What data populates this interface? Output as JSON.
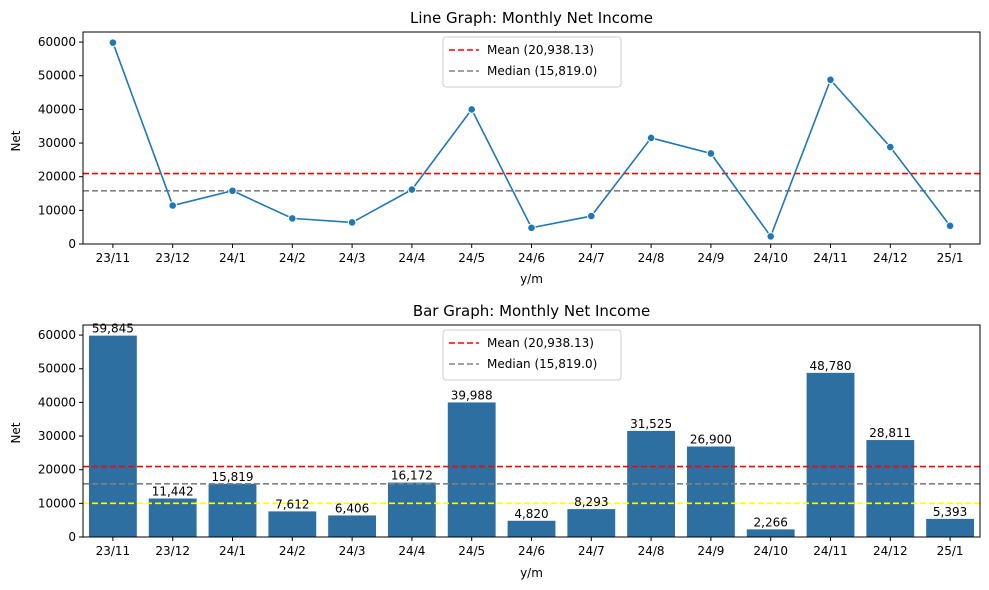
{
  "chart_data": [
    {
      "type": "line",
      "title": "Line Graph: Monthly Net Income",
      "xlabel": "y/m",
      "ylabel": "Net",
      "categories": [
        "23/11",
        "23/12",
        "24/1",
        "24/2",
        "24/3",
        "24/4",
        "24/5",
        "24/6",
        "24/7",
        "24/8",
        "24/9",
        "24/10",
        "24/11",
        "24/12",
        "25/1"
      ],
      "values": [
        59845,
        11442,
        15819,
        7612,
        6406,
        16172,
        39988,
        4820,
        8293,
        31525,
        26900,
        2266,
        48780,
        28811,
        5393
      ],
      "ylim": [
        0,
        63000
      ],
      "yticks": [
        0,
        10000,
        20000,
        30000,
        40000,
        50000,
        60000
      ],
      "grid": false,
      "legend_position": "top-center",
      "reference_lines": [
        {
          "label": "Mean (20,938.13)",
          "value": 20938.13,
          "color": "#ff0000",
          "style": "dashed"
        },
        {
          "label": "Median (15,819.0)",
          "value": 15819.0,
          "color": "#808080",
          "style": "dashed"
        }
      ],
      "series_color": "#1f77b4"
    },
    {
      "type": "bar",
      "title": "Bar Graph: Monthly Net Income",
      "xlabel": "y/m",
      "ylabel": "Net",
      "categories": [
        "23/11",
        "23/12",
        "24/1",
        "24/2",
        "24/3",
        "24/4",
        "24/5",
        "24/6",
        "24/7",
        "24/8",
        "24/9",
        "24/10",
        "24/11",
        "24/12",
        "25/1"
      ],
      "values": [
        59845,
        11442,
        15819,
        7612,
        6406,
        16172,
        39988,
        4820,
        8293,
        31525,
        26900,
        2266,
        48780,
        28811,
        5393
      ],
      "data_labels": [
        "59,845",
        "11,442",
        "15,819",
        "7,612",
        "6,406",
        "16,172",
        "39,988",
        "4,820",
        "8,293",
        "31,525",
        "26,900",
        "2,266",
        "48,780",
        "28,811",
        "5,393"
      ],
      "ylim": [
        0,
        63000
      ],
      "yticks": [
        0,
        10000,
        20000,
        30000,
        40000,
        50000,
        60000
      ],
      "grid": false,
      "legend_position": "top-center",
      "reference_lines": [
        {
          "label": "Mean (20,938.13)",
          "value": 20938.13,
          "color": "#ff0000",
          "style": "dashed"
        },
        {
          "label": "Median (15,819.0)",
          "value": 15819.0,
          "color": "#808080",
          "style": "dashed"
        },
        {
          "label": "",
          "value": 10000,
          "color": "#ffff00",
          "style": "dashed"
        }
      ],
      "series_color": "#2e6fa1"
    }
  ]
}
